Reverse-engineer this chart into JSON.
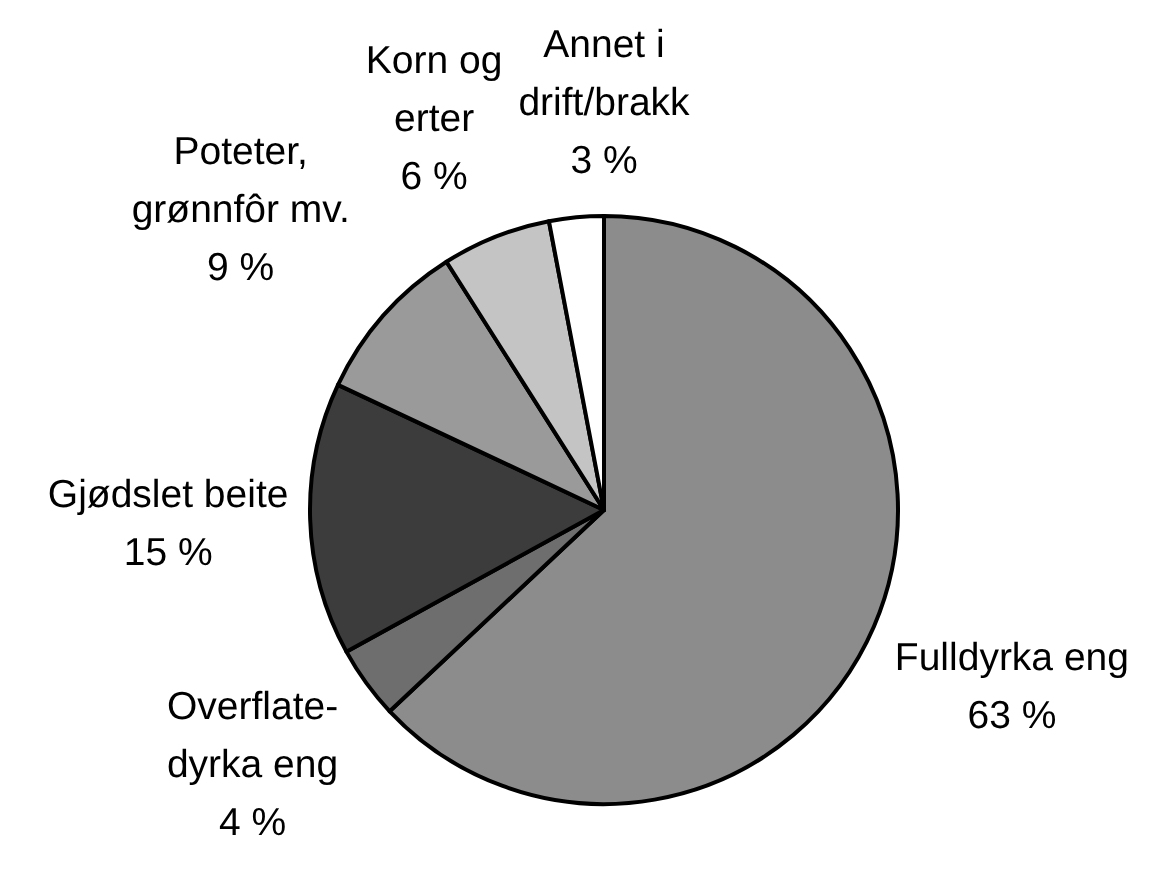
{
  "chart_data": {
    "type": "pie",
    "categories": [
      "Fulldyrka eng",
      "Overflate-\ndyrka eng",
      "Gjødslet beite",
      "Poteter,\ngrønnfôr mv.",
      "Korn og\nerter",
      "Annet i\ndrift/brakk"
    ],
    "values": [
      63,
      4,
      15,
      9,
      6,
      3
    ],
    "colors": [
      "#8c8c8c",
      "#6e6e6e",
      "#3c3c3c",
      "#9a9a9a",
      "#c4c4c4",
      "#ffffff"
    ],
    "value_labels": [
      "63 %",
      "4 %",
      "15 %",
      "9 %",
      "6 %",
      "3 %"
    ]
  }
}
